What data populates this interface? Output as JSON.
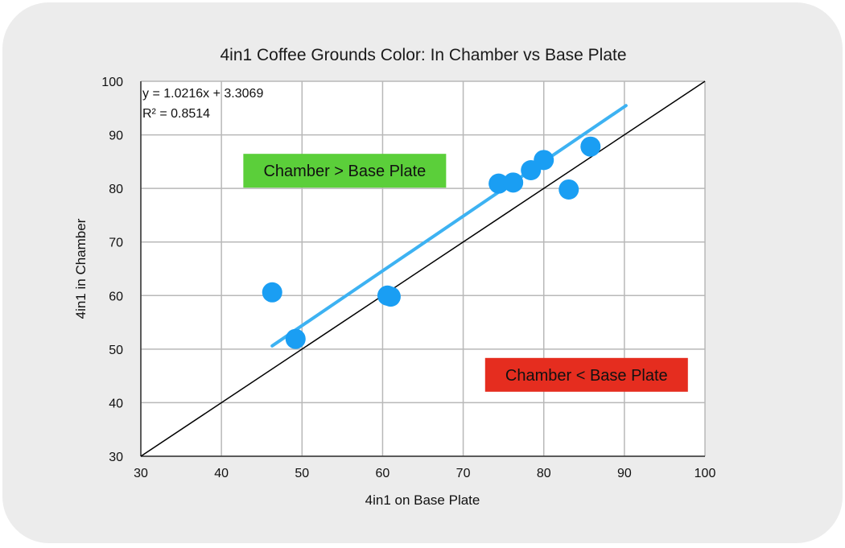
{
  "chart_data": {
    "type": "scatter",
    "title": "4in1 Coffee Grounds Color: In Chamber vs Base Plate",
    "xlabel": "4in1 on Base Plate",
    "ylabel": "4in1 in Chamber",
    "xlim": [
      30,
      100
    ],
    "ylim": [
      30,
      100
    ],
    "xticks": [
      30,
      40,
      50,
      60,
      70,
      80,
      90,
      100
    ],
    "yticks": [
      30,
      40,
      50,
      60,
      70,
      80,
      90,
      100
    ],
    "grid": true,
    "points": [
      {
        "x": 46.3,
        "y": 60.6
      },
      {
        "x": 49.2,
        "y": 51.9
      },
      {
        "x": 60.6,
        "y": 60.0
      },
      {
        "x": 61.0,
        "y": 59.8
      },
      {
        "x": 74.4,
        "y": 80.9
      },
      {
        "x": 76.2,
        "y": 81.1
      },
      {
        "x": 78.4,
        "y": 83.4
      },
      {
        "x": 80.0,
        "y": 85.3
      },
      {
        "x": 83.1,
        "y": 79.8
      },
      {
        "x": 85.8,
        "y": 87.8
      }
    ],
    "trendline": {
      "x_range": [
        46.3,
        90.2
      ],
      "slope": 1.0216,
      "intercept": 3.3069,
      "equation_label": "y = 1.0216x + 3.3069",
      "r2_label": "R² = 0.8514"
    },
    "reference_line": {
      "x_range": [
        30,
        100
      ],
      "slope": 1,
      "intercept": 0
    },
    "annotations": [
      {
        "text": "Chamber > Base Plate",
        "x": 55.3,
        "y": 83.3,
        "color": "#5bcf3a"
      },
      {
        "text": "Chamber < Base Plate",
        "x": 85.3,
        "y": 45.2,
        "color": "#e52d1f"
      }
    ],
    "colors": {
      "points": "#1a9ef3",
      "trendline": "#3db2f2",
      "reference": "#000000",
      "grid": "#b8b8b8",
      "plot_bg": "#ffffff",
      "card_bg": "#ececec"
    }
  }
}
